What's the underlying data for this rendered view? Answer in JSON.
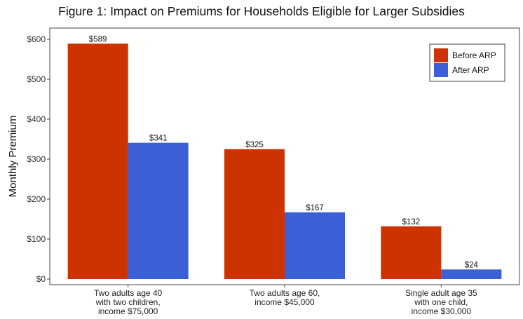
{
  "chart_data": {
    "type": "bar",
    "title": "Figure 1: Impact on Premiums for Households Eligible for Larger Subsidies",
    "xlabel": "",
    "ylabel": "Monthly Premium",
    "ylim": [
      0,
      600
    ],
    "yticks": [
      0,
      100,
      200,
      300,
      400,
      500,
      600
    ],
    "ytick_labels": [
      "$0",
      "$100",
      "$200",
      "$300",
      "$400",
      "$500",
      "$600"
    ],
    "grid": false,
    "legend_position": "top-right",
    "categories": [
      [
        "Two adults age 40",
        "with two children,",
        "income $75,000"
      ],
      [
        "Two adults age 60,",
        "income $45,000"
      ],
      [
        "Single adult age 35",
        "with one child,",
        "income $30,000"
      ]
    ],
    "series": [
      {
        "name": "Before ARP",
        "color": "#cc3300",
        "values": [
          589,
          325,
          132
        ],
        "labels": [
          "$589",
          "$325",
          "$132"
        ]
      },
      {
        "name": "After ARP",
        "color": "#3b5fd6",
        "values": [
          341,
          167,
          24
        ],
        "labels": [
          "$341",
          "$167",
          "$24"
        ]
      }
    ]
  }
}
